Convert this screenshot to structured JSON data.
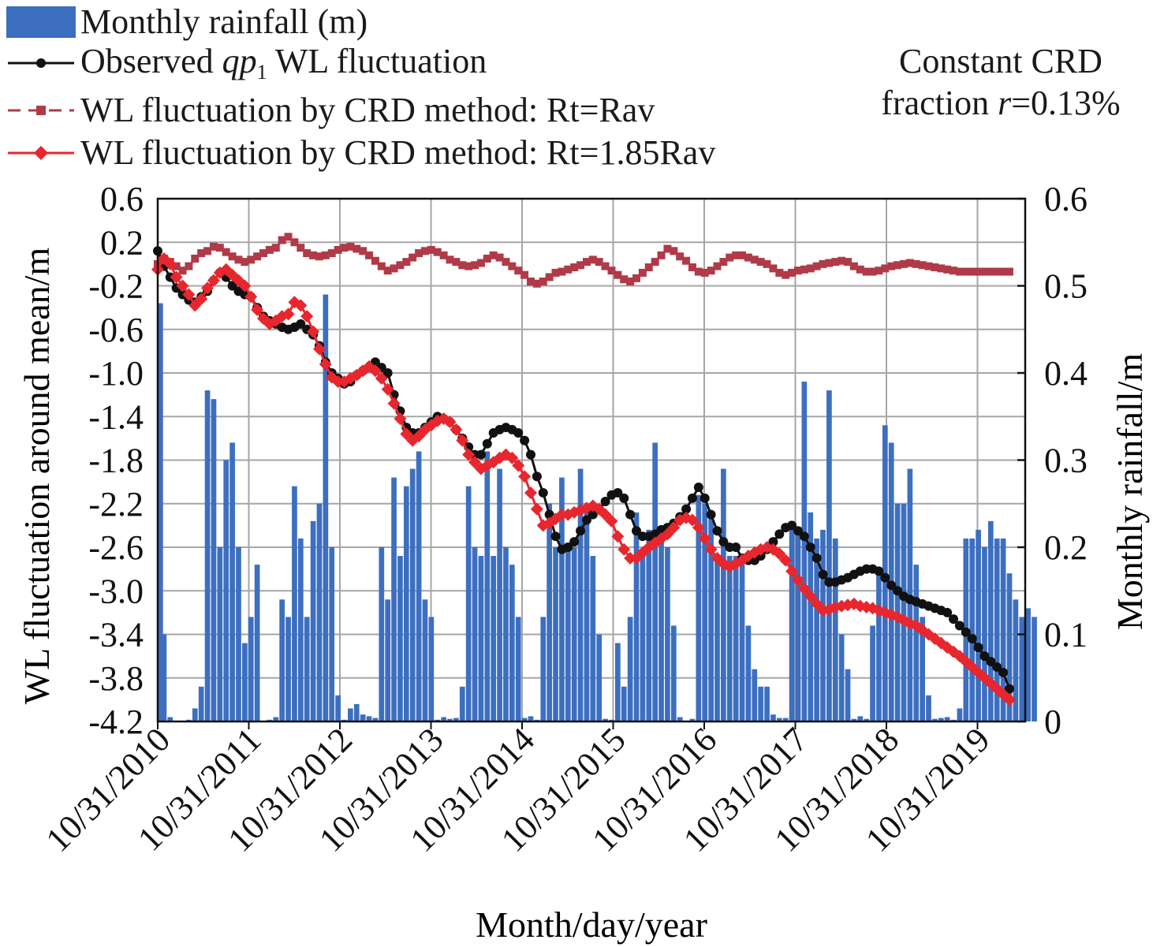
{
  "chart_data": {
    "type": "line",
    "xlabel": "Month/day/year",
    "ylabel_left": "WL fluctuation around mean/m",
    "ylabel_right": "Monthly rainfall/m",
    "x_ticks": [
      "10/31/2010",
      "10/31/2011",
      "10/31/2012",
      "10/31/2013",
      "10/31/2014",
      "10/31/2015",
      "10/31/2016",
      "10/31/2017",
      "10/31/2018",
      "10/31/2019"
    ],
    "ylim_left": [
      -4.2,
      0.6
    ],
    "y_ticks_left": [
      "0.6",
      "0.2",
      "-0.2",
      "-0.6",
      "-1.0",
      "-1.4",
      "-1.8",
      "-2.2",
      "-2.6",
      "-3.0",
      "-3.4",
      "-3.8",
      "-4.2"
    ],
    "ylim_right": [
      0,
      0.6
    ],
    "y_ticks_right": [
      "0.6",
      "0.5",
      "0.4",
      "0.3",
      "0.2",
      "0.1",
      "0"
    ],
    "grid": true,
    "legend_position": "top-left",
    "annotation": {
      "line1": "Constant CRD",
      "line2_prefix": "fraction ",
      "line2_var": "r",
      "line2_suffix": "=0.13%"
    },
    "series": [
      {
        "name": "Monthly rainfall (m)",
        "kind": "bar",
        "axis": "right",
        "color": "#3d6fc0",
        "values": [
          0.48,
          0.1,
          0.005,
          0,
          0,
          0.002,
          0.015,
          0.04,
          0.38,
          0.37,
          0.2,
          0.3,
          0.32,
          0.2,
          0.09,
          0.12,
          0.18,
          0,
          0.002,
          0.005,
          0.14,
          0.12,
          0.27,
          0.21,
          0.12,
          0.23,
          0.25,
          0.49,
          0.2,
          0.03,
          0.002,
          0.015,
          0.02,
          0.008,
          0.006,
          0.004,
          0.2,
          0.14,
          0.28,
          0.19,
          0.27,
          0.29,
          0.31,
          0.14,
          0.12,
          0.002,
          0.005,
          0.003,
          0.004,
          0.04,
          0.27,
          0.2,
          0.19,
          0.31,
          0.19,
          0.29,
          0.2,
          0.18,
          0.12,
          0.004,
          0.006,
          0.002,
          0.12,
          0.25,
          0.2,
          0.28,
          0.2,
          0.2,
          0.29,
          0.25,
          0.19,
          0.1,
          0.003,
          0.002,
          0.09,
          0.04,
          0.12,
          0.24,
          0.19,
          0.22,
          0.32,
          0.21,
          0.2,
          0.11,
          0.005,
          0.001,
          0.003,
          0.26,
          0.25,
          0.24,
          0.19,
          0.29,
          0.19,
          0.19,
          0.18,
          0.11,
          0.06,
          0.04,
          0.04,
          0.008,
          0.004,
          0.004,
          0.23,
          0.22,
          0.39,
          0.24,
          0.21,
          0.22,
          0.38,
          0.21,
          0.1,
          0.06,
          0.003,
          0.006,
          0.003,
          0.11,
          0.17,
          0.34,
          0.32,
          0.25,
          0.25,
          0.29,
          0.18,
          0.12,
          0.03,
          0.003,
          0.004,
          0.005,
          0.002,
          0.015,
          0.21,
          0.21,
          0.22,
          0.2,
          0.23,
          0.21,
          0.21,
          0.17,
          0.14,
          0.12,
          0.13,
          0.12
        ]
      },
      {
        "name": "Observed qp1 WL fluctuation",
        "legend_prefix": "Observed ",
        "legend_var": "qp",
        "legend_sub": "1",
        "legend_suffix": " WL fluctuation",
        "kind": "line",
        "marker": "circle",
        "axis": "left",
        "color": "#111111",
        "values": [
          0.12,
          -0.02,
          -0.12,
          -0.22,
          -0.28,
          -0.33,
          -0.35,
          -0.3,
          -0.25,
          -0.15,
          -0.08,
          -0.12,
          -0.2,
          -0.25,
          -0.28,
          -0.3,
          -0.4,
          -0.48,
          -0.52,
          -0.55,
          -0.58,
          -0.6,
          -0.58,
          -0.55,
          -0.6,
          -0.65,
          -0.75,
          -0.9,
          -1.0,
          -1.05,
          -1.1,
          -1.08,
          -1.02,
          -0.98,
          -0.95,
          -0.9,
          -0.95,
          -1.0,
          -1.2,
          -1.35,
          -1.5,
          -1.55,
          -1.55,
          -1.5,
          -1.45,
          -1.4,
          -1.42,
          -1.45,
          -1.52,
          -1.6,
          -1.68,
          -1.75,
          -1.75,
          -1.65,
          -1.55,
          -1.52,
          -1.5,
          -1.52,
          -1.55,
          -1.62,
          -1.75,
          -1.95,
          -2.1,
          -2.3,
          -2.5,
          -2.62,
          -2.6,
          -2.55,
          -2.45,
          -2.35,
          -2.3,
          -2.25,
          -2.18,
          -2.12,
          -2.1,
          -2.15,
          -2.3,
          -2.45,
          -2.5,
          -2.5,
          -2.48,
          -2.44,
          -2.42,
          -2.38,
          -2.32,
          -2.25,
          -2.15,
          -2.05,
          -2.15,
          -2.3,
          -2.45,
          -2.55,
          -2.6,
          -2.6,
          -2.7,
          -2.72,
          -2.72,
          -2.68,
          -2.62,
          -2.55,
          -2.48,
          -2.42,
          -2.4,
          -2.45,
          -2.5,
          -2.6,
          -2.7,
          -2.85,
          -2.92,
          -2.92,
          -2.9,
          -2.88,
          -2.85,
          -2.82,
          -2.8,
          -2.8,
          -2.82,
          -2.88,
          -2.95,
          -3.0,
          -3.05,
          -3.08,
          -3.1,
          -3.12,
          -3.14,
          -3.16,
          -3.18,
          -3.2,
          -3.26,
          -3.32,
          -3.38,
          -3.44,
          -3.52,
          -3.6,
          -3.65,
          -3.7,
          -3.75,
          -3.9
        ]
      },
      {
        "name": "WL fluctuation by CRD method: Rt=Rav",
        "kind": "line",
        "marker": "square",
        "dashed": true,
        "axis": "left",
        "color": "#b03a48",
        "values": [
          0.0,
          0.05,
          0.02,
          -0.02,
          -0.06,
          -0.02,
          0.05,
          0.1,
          0.12,
          0.16,
          0.15,
          0.11,
          0.07,
          0.04,
          0.02,
          0.04,
          0.07,
          0.1,
          0.13,
          0.15,
          0.22,
          0.25,
          0.2,
          0.15,
          0.1,
          0.08,
          0.07,
          0.08,
          0.1,
          0.13,
          0.15,
          0.16,
          0.14,
          0.12,
          0.08,
          0.03,
          -0.02,
          -0.06,
          -0.04,
          -0.01,
          0.02,
          0.06,
          0.1,
          0.12,
          0.13,
          0.11,
          0.08,
          0.04,
          0.02,
          -0.01,
          -0.02,
          -0.01,
          0.01,
          0.05,
          0.08,
          0.06,
          0.02,
          -0.02,
          -0.06,
          -0.1,
          -0.16,
          -0.18,
          -0.16,
          -0.12,
          -0.08,
          -0.07,
          -0.05,
          -0.03,
          -0.01,
          0.02,
          0.04,
          0.02,
          -0.02,
          -0.06,
          -0.1,
          -0.14,
          -0.16,
          -0.13,
          -0.08,
          -0.03,
          0.02,
          0.08,
          0.14,
          0.12,
          0.07,
          0.03,
          -0.03,
          -0.07,
          -0.08,
          -0.06,
          -0.02,
          0.02,
          0.06,
          0.08,
          0.08,
          0.06,
          0.04,
          0.02,
          0.0,
          -0.04,
          -0.08,
          -0.1,
          -0.08,
          -0.06,
          -0.05,
          -0.04,
          -0.02,
          0.0,
          0.01,
          0.02,
          0.03,
          0.02,
          -0.02,
          -0.05,
          -0.07,
          -0.07,
          -0.06,
          -0.04,
          -0.02,
          -0.01,
          0.0,
          0.01,
          0.0,
          -0.01,
          -0.02,
          -0.03,
          -0.04,
          -0.05,
          -0.06,
          -0.07,
          -0.07,
          -0.07,
          -0.07,
          -0.07,
          -0.07,
          -0.07,
          -0.07,
          -0.07
        ]
      },
      {
        "name": "WL fluctuation by CRD method: Rt=1.85Rav",
        "kind": "line",
        "marker": "diamond",
        "axis": "left",
        "color": "#e8262d",
        "values": [
          -0.05,
          0.05,
          0.0,
          -0.12,
          -0.2,
          -0.28,
          -0.38,
          -0.32,
          -0.22,
          -0.15,
          -0.08,
          -0.05,
          -0.1,
          -0.15,
          -0.2,
          -0.3,
          -0.42,
          -0.5,
          -0.55,
          -0.52,
          -0.48,
          -0.46,
          -0.35,
          -0.38,
          -0.48,
          -0.62,
          -0.78,
          -0.92,
          -1.04,
          -1.08,
          -1.08,
          -1.05,
          -1.02,
          -0.98,
          -0.94,
          -0.98,
          -1.05,
          -1.15,
          -1.28,
          -1.42,
          -1.56,
          -1.62,
          -1.58,
          -1.52,
          -1.48,
          -1.44,
          -1.42,
          -1.45,
          -1.52,
          -1.62,
          -1.75,
          -1.82,
          -1.88,
          -1.85,
          -1.82,
          -1.78,
          -1.75,
          -1.78,
          -1.85,
          -1.95,
          -2.1,
          -2.25,
          -2.4,
          -2.38,
          -2.34,
          -2.3,
          -2.3,
          -2.28,
          -2.26,
          -2.24,
          -2.22,
          -2.25,
          -2.3,
          -2.36,
          -2.5,
          -2.62,
          -2.7,
          -2.7,
          -2.65,
          -2.6,
          -2.56,
          -2.52,
          -2.48,
          -2.42,
          -2.35,
          -2.33,
          -2.35,
          -2.42,
          -2.52,
          -2.62,
          -2.7,
          -2.75,
          -2.78,
          -2.75,
          -2.72,
          -2.68,
          -2.65,
          -2.62,
          -2.6,
          -2.62,
          -2.66,
          -2.72,
          -2.82,
          -2.9,
          -2.98,
          -3.05,
          -3.12,
          -3.18,
          -3.17,
          -3.15,
          -3.14,
          -3.13,
          -3.12,
          -3.14,
          -3.15,
          -3.16,
          -3.18,
          -3.2,
          -3.22,
          -3.24,
          -3.27,
          -3.3,
          -3.32,
          -3.36,
          -3.4,
          -3.44,
          -3.48,
          -3.52,
          -3.56,
          -3.6,
          -3.65,
          -3.7,
          -3.75,
          -3.8,
          -3.85,
          -3.9,
          -3.95,
          -4.0
        ]
      }
    ]
  }
}
